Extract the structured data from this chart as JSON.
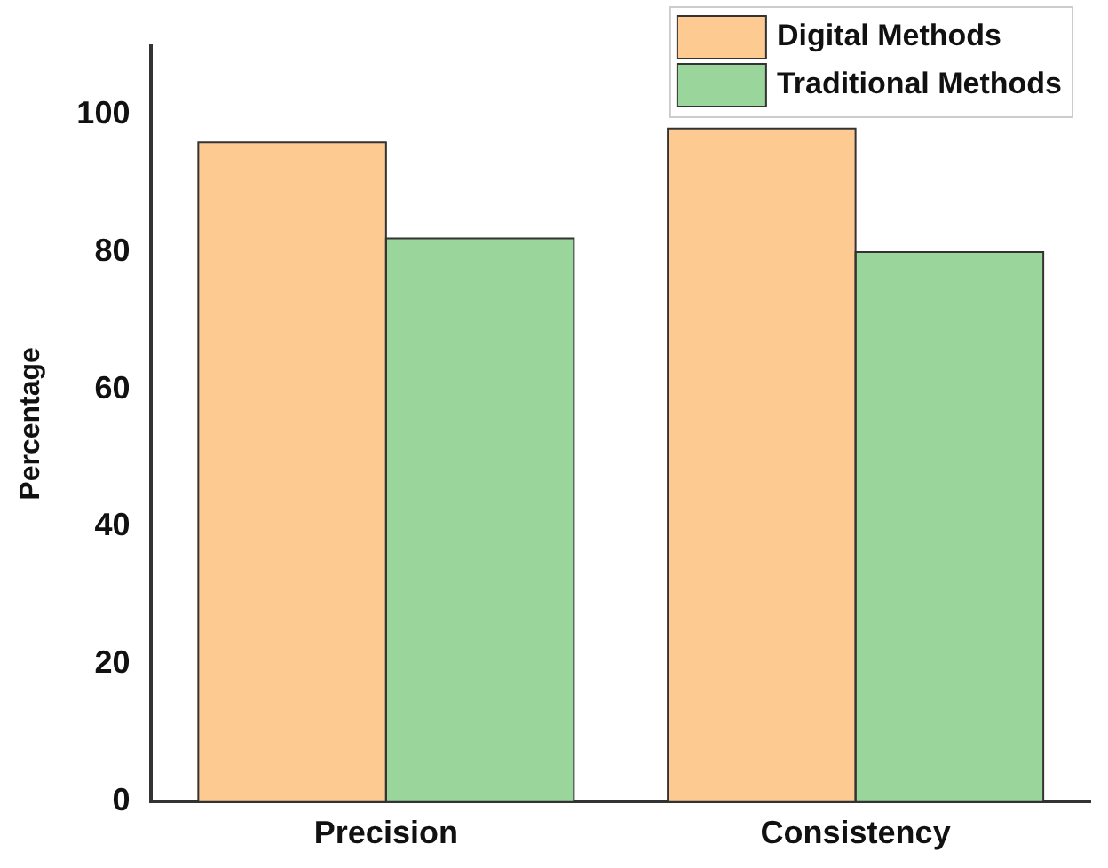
{
  "chart_data": {
    "type": "bar",
    "ylabel": "Percentage",
    "categories": [
      "Precision",
      "Consistency"
    ],
    "series": [
      {
        "name": "Digital Methods",
        "color": "#fdcb92",
        "values": [
          96,
          98
        ]
      },
      {
        "name": "Traditional Methods",
        "color": "#9ad59b",
        "values": [
          82,
          80
        ]
      }
    ],
    "ylim": [
      0,
      110
    ],
    "yticks": [
      0,
      20,
      40,
      60,
      80,
      100
    ],
    "legend": "top right",
    "grid": false
  }
}
